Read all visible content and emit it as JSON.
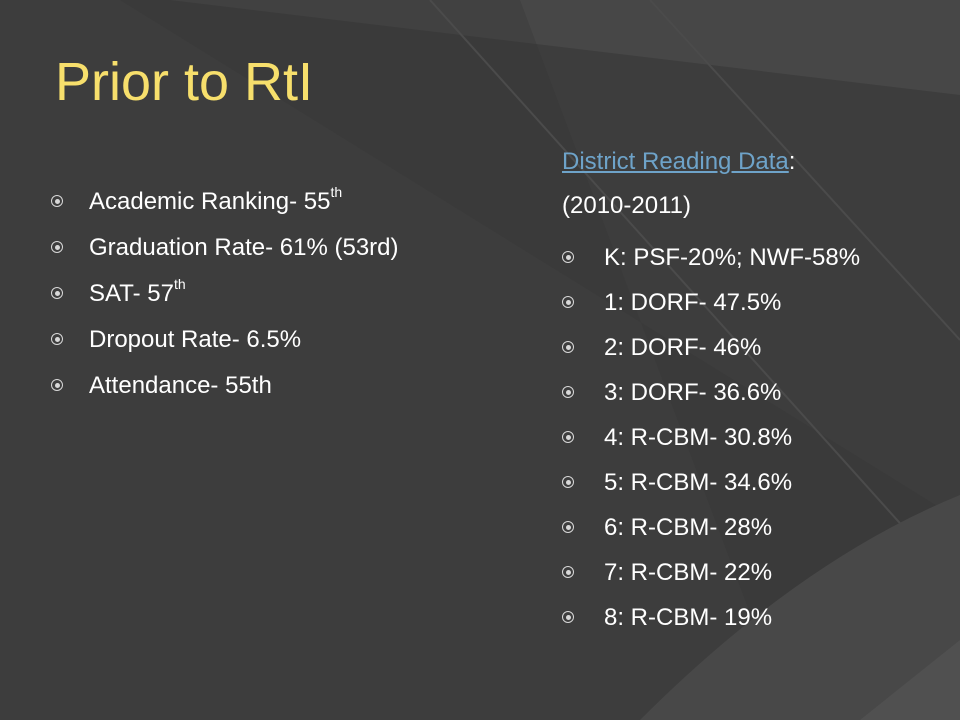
{
  "slide": {
    "title": "Prior to RtI",
    "left_bullets": [
      {
        "text": "Academic Ranking- 55",
        "sup": "th"
      },
      {
        "text": "Graduation Rate- 61% (53rd)",
        "sup": ""
      },
      {
        "text": "SAT- 57",
        "sup": "th"
      },
      {
        "text": "Dropout Rate- 6.5%",
        "sup": ""
      },
      {
        "text": "Attendance- 55th",
        "sup": ""
      }
    ],
    "right_heading": {
      "link_text": "District Reading Data",
      "suffix": ":",
      "year_range": "(2010-2011)"
    },
    "right_bullets": [
      "K: PSF-20%; NWF-58%",
      "1: DORF- 47.5%",
      "2: DORF- 46%",
      "3: DORF- 36.6%",
      "4: R-CBM- 30.8%",
      "5: R-CBM- 34.6%",
      "6: R-CBM- 28%",
      "7: R-CBM- 22%",
      "8: R-CBM- 19%"
    ]
  },
  "colors": {
    "background": "#3d3d3d",
    "title": "#f7df6c",
    "body_text": "#ffffff",
    "link": "#6ea3c9",
    "bullet": "#d8d8d8"
  }
}
